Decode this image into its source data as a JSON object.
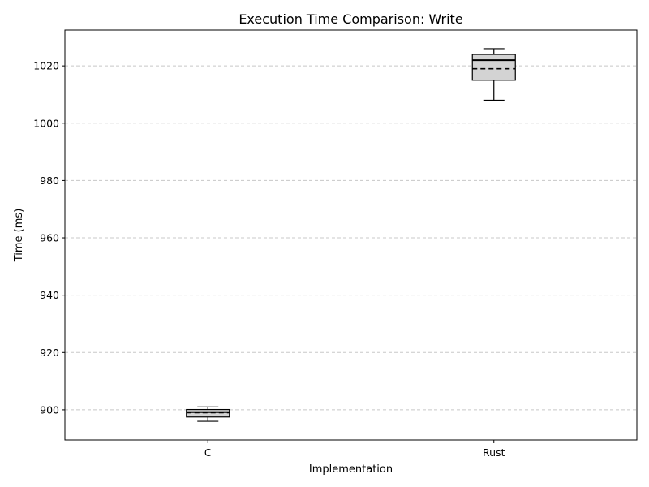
{
  "chart_data": {
    "type": "box",
    "title": "Execution Time Comparison: Write",
    "xlabel": "Implementation",
    "ylabel": "Time (ms)",
    "categories": [
      "C",
      "Rust"
    ],
    "ylim": [
      889.5,
      1032.5
    ],
    "yticks": [
      900,
      920,
      940,
      960,
      980,
      1000,
      1020
    ],
    "grid": "y-dashed",
    "boxes": [
      {
        "category": "C",
        "whisker_low": 896,
        "q1": 897.5,
        "median": 899.2,
        "mean": 899,
        "q3": 900.1,
        "whisker_high": 901
      },
      {
        "category": "Rust",
        "whisker_low": 1008,
        "q1": 1015,
        "median": 1022,
        "mean": 1019,
        "q3": 1024,
        "whisker_high": 1026
      }
    ],
    "colors": {
      "box_fill": "#d3d3d3",
      "line": "#000000",
      "grid": "#c8c8c8"
    }
  }
}
